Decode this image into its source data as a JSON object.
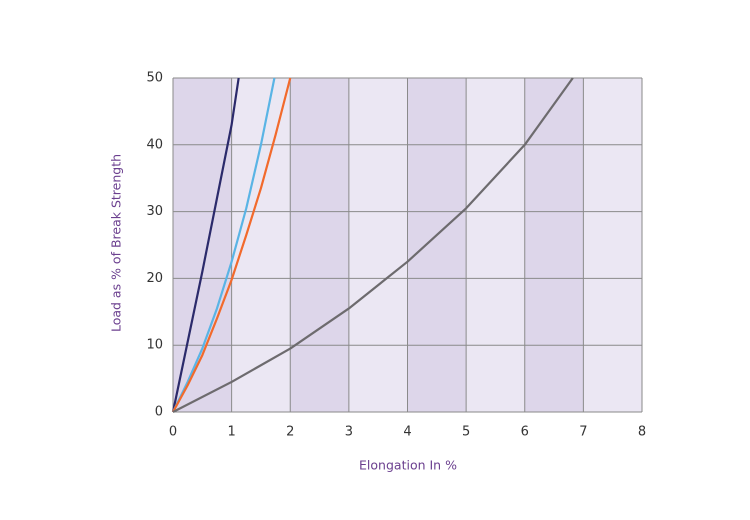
{
  "chart_data": {
    "type": "line",
    "x_label": "Elongation In %",
    "y_label": "Load as % of Break Strength",
    "xlim": [
      0,
      8
    ],
    "ylim": [
      0,
      50
    ],
    "xticks": [
      0,
      1,
      2,
      3,
      4,
      5,
      6,
      7,
      8
    ],
    "yticks": [
      0,
      10,
      20,
      30,
      40,
      50
    ],
    "grid": true,
    "grid_color": "#8a8a8a",
    "band_colors": [
      "#ddd6ea",
      "#ebe7f3"
    ],
    "series": [
      {
        "color": "#2b2a6b",
        "x": [
          0,
          0.25,
          0.5,
          0.75,
          1,
          1.12
        ],
        "values": [
          0,
          10.5,
          21,
          32,
          43,
          50
        ]
      },
      {
        "color": "#5ab4e5",
        "x": [
          0,
          0.25,
          0.5,
          0.75,
          1,
          1.25,
          1.5,
          1.73
        ],
        "values": [
          0,
          4.5,
          9.5,
          15.5,
          22.5,
          30.5,
          40,
          50
        ]
      },
      {
        "color": "#f26a2c",
        "x": [
          0,
          0.25,
          0.5,
          0.75,
          1,
          1.25,
          1.5,
          1.75,
          2
        ],
        "values": [
          0,
          4,
          8.5,
          14,
          19.8,
          26.5,
          33.5,
          41.5,
          50
        ]
      },
      {
        "color": "#6d6b6e",
        "x": [
          0,
          1,
          2,
          3,
          4,
          5,
          6,
          6.82
        ],
        "values": [
          0,
          4.5,
          9.5,
          15.5,
          22.5,
          30.5,
          40,
          50
        ]
      }
    ]
  }
}
